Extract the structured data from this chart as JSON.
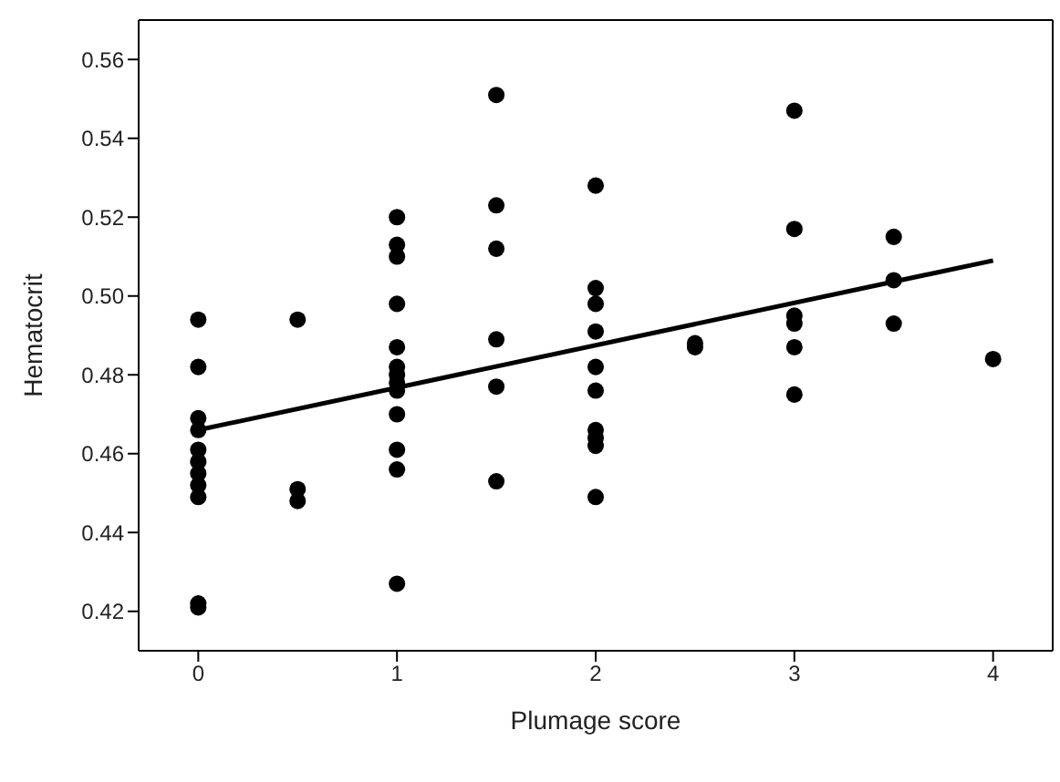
{
  "chart_data": {
    "type": "scatter",
    "xlabel": "Plumage score",
    "ylabel": "Hematocrit",
    "xlim": [
      -0.3,
      4.3
    ],
    "ylim": [
      0.41,
      0.57
    ],
    "xticks": [
      0,
      1,
      2,
      3,
      4
    ],
    "yticks": [
      0.42,
      0.44,
      0.46,
      0.48,
      {
        "value": 0.5,
        "label": "0.50"
      },
      0.52,
      0.54,
      0.56
    ],
    "grid": false,
    "marker": "circle",
    "series": [
      {
        "color": "#000000",
        "x": [
          0,
          0,
          0,
          0,
          0,
          0,
          0,
          0,
          0,
          0,
          0,
          0.5,
          0.5,
          0.5,
          1,
          1,
          1,
          1,
          1,
          1,
          1,
          1,
          1,
          1,
          1,
          1,
          1,
          1.5,
          1.5,
          1.5,
          1.5,
          1.5,
          1.5,
          2,
          2,
          2,
          2,
          2,
          2,
          2,
          2,
          2,
          2,
          2.5,
          2.5,
          3,
          3,
          3,
          3,
          3,
          3,
          3.5,
          3.5,
          3.5,
          4
        ],
        "values": [
          0.494,
          0.482,
          0.469,
          0.466,
          0.461,
          0.458,
          0.455,
          0.452,
          0.449,
          0.422,
          0.421,
          0.494,
          0.451,
          0.448,
          0.52,
          0.513,
          0.51,
          0.498,
          0.487,
          0.482,
          0.48,
          0.478,
          0.476,
          0.47,
          0.461,
          0.456,
          0.427,
          0.551,
          0.523,
          0.512,
          0.489,
          0.477,
          0.453,
          0.528,
          0.502,
          0.498,
          0.491,
          0.482,
          0.476,
          0.466,
          0.464,
          0.462,
          0.449,
          0.488,
          0.487,
          0.547,
          0.517,
          0.495,
          0.493,
          0.487,
          0.475,
          0.515,
          0.504,
          0.493,
          0.484
        ]
      },
      {
        "type": "line",
        "color": "#000000",
        "marker": "none",
        "line_style": "solid",
        "x": [
          0,
          4
        ],
        "values": [
          0.466,
          0.509
        ]
      }
    ]
  }
}
